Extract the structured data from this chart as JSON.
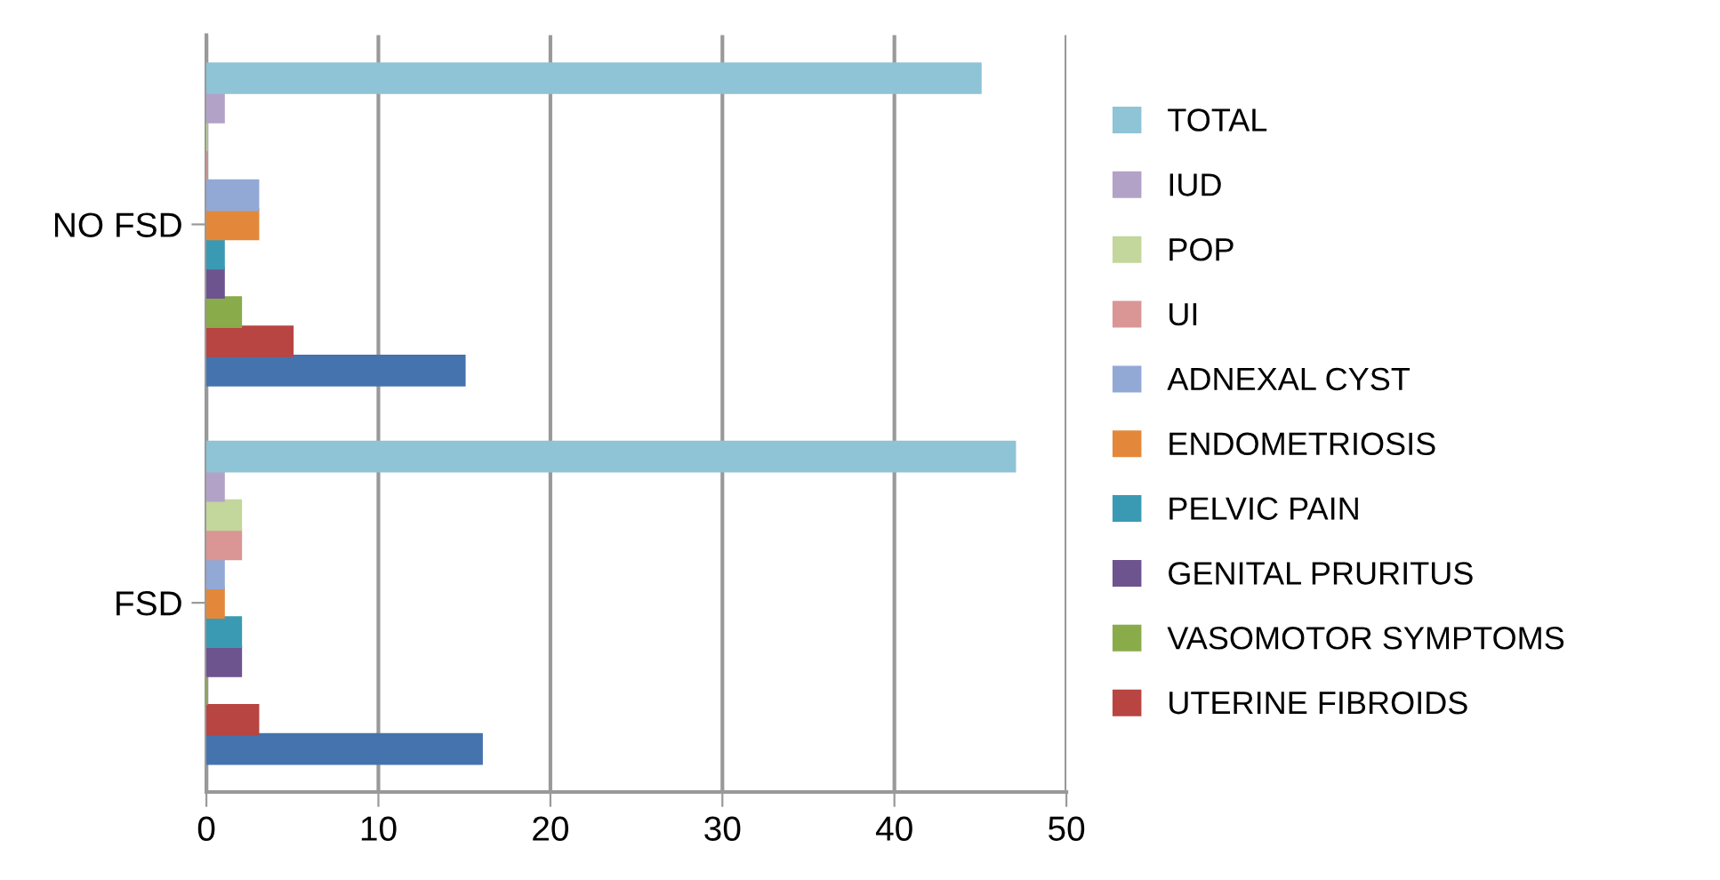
{
  "chart_data": {
    "type": "bar",
    "orientation": "horizontal",
    "categories": [
      "NO FSD",
      "FSD"
    ],
    "series": [
      {
        "color": "#4573ad",
        "values": [
          15,
          16
        ]
      },
      {
        "name": "UTERINE FIBROIDS",
        "color": "#b84542",
        "values": [
          5,
          3
        ]
      },
      {
        "name": "VASOMOTOR SYMPTOMS",
        "color": "#8aab4a",
        "values": [
          2,
          0
        ]
      },
      {
        "name": "GENITAL PRURITUS",
        "color": "#6e548f",
        "values": [
          1,
          2
        ]
      },
      {
        "name": "PELVIC PAIN",
        "color": "#3b9ab3",
        "values": [
          1,
          2
        ]
      },
      {
        "name": "ENDOMETRIOSIS",
        "color": "#e3883a",
        "values": [
          3,
          1
        ]
      },
      {
        "name": "ADNEXAL CYST",
        "color": "#92a9d6",
        "values": [
          3,
          1
        ]
      },
      {
        "name": "UI",
        "color": "#d99694",
        "values": [
          0,
          2
        ]
      },
      {
        "name": "POP",
        "color": "#c3d69b",
        "values": [
          0,
          2
        ]
      },
      {
        "name": "IUD",
        "color": "#b3a2c7",
        "values": [
          1,
          1
        ]
      },
      {
        "name": "TOTAL",
        "color": "#8fc3d6",
        "values": [
          45,
          47
        ]
      }
    ],
    "xlim": [
      0,
      50
    ],
    "xticks": [
      0,
      10,
      20,
      30,
      40,
      50
    ],
    "grid": "x",
    "legend": "right"
  }
}
